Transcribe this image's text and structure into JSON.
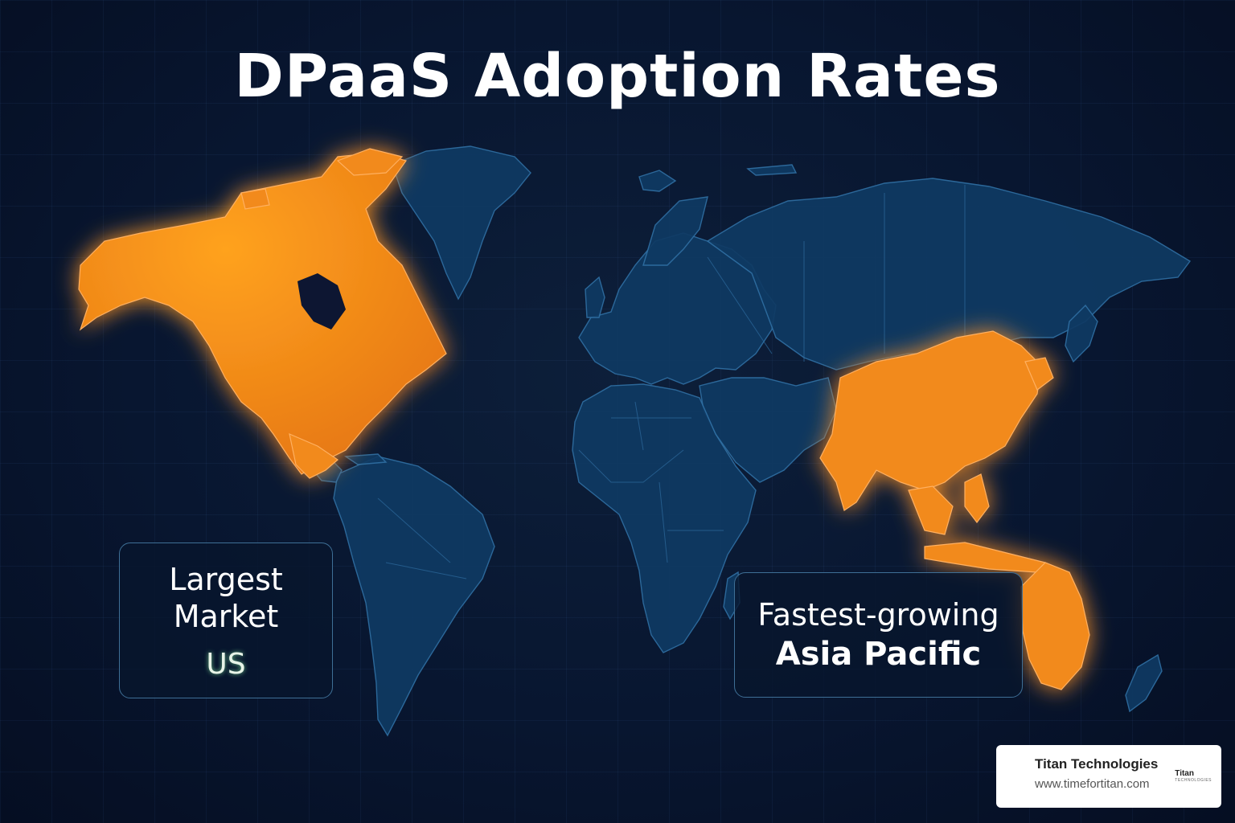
{
  "title": "DPaaS Adoption Rates",
  "colors": {
    "background": "#081630",
    "land": "#0f3a63",
    "highlight": "#f28a1c"
  },
  "highlighted_regions": [
    "North America",
    "Asia Pacific"
  ],
  "callouts": {
    "largest": {
      "label_line1": "Largest",
      "label_line2": "Market",
      "value": "US"
    },
    "fastest": {
      "label": "Fastest-growing",
      "value": "Asia Pacific"
    }
  },
  "badge": {
    "name": "Titan Technologies",
    "url": "www.timefortitan.com",
    "logo_text": "Titan",
    "logo_sub": "TECHNOLOGIES"
  }
}
